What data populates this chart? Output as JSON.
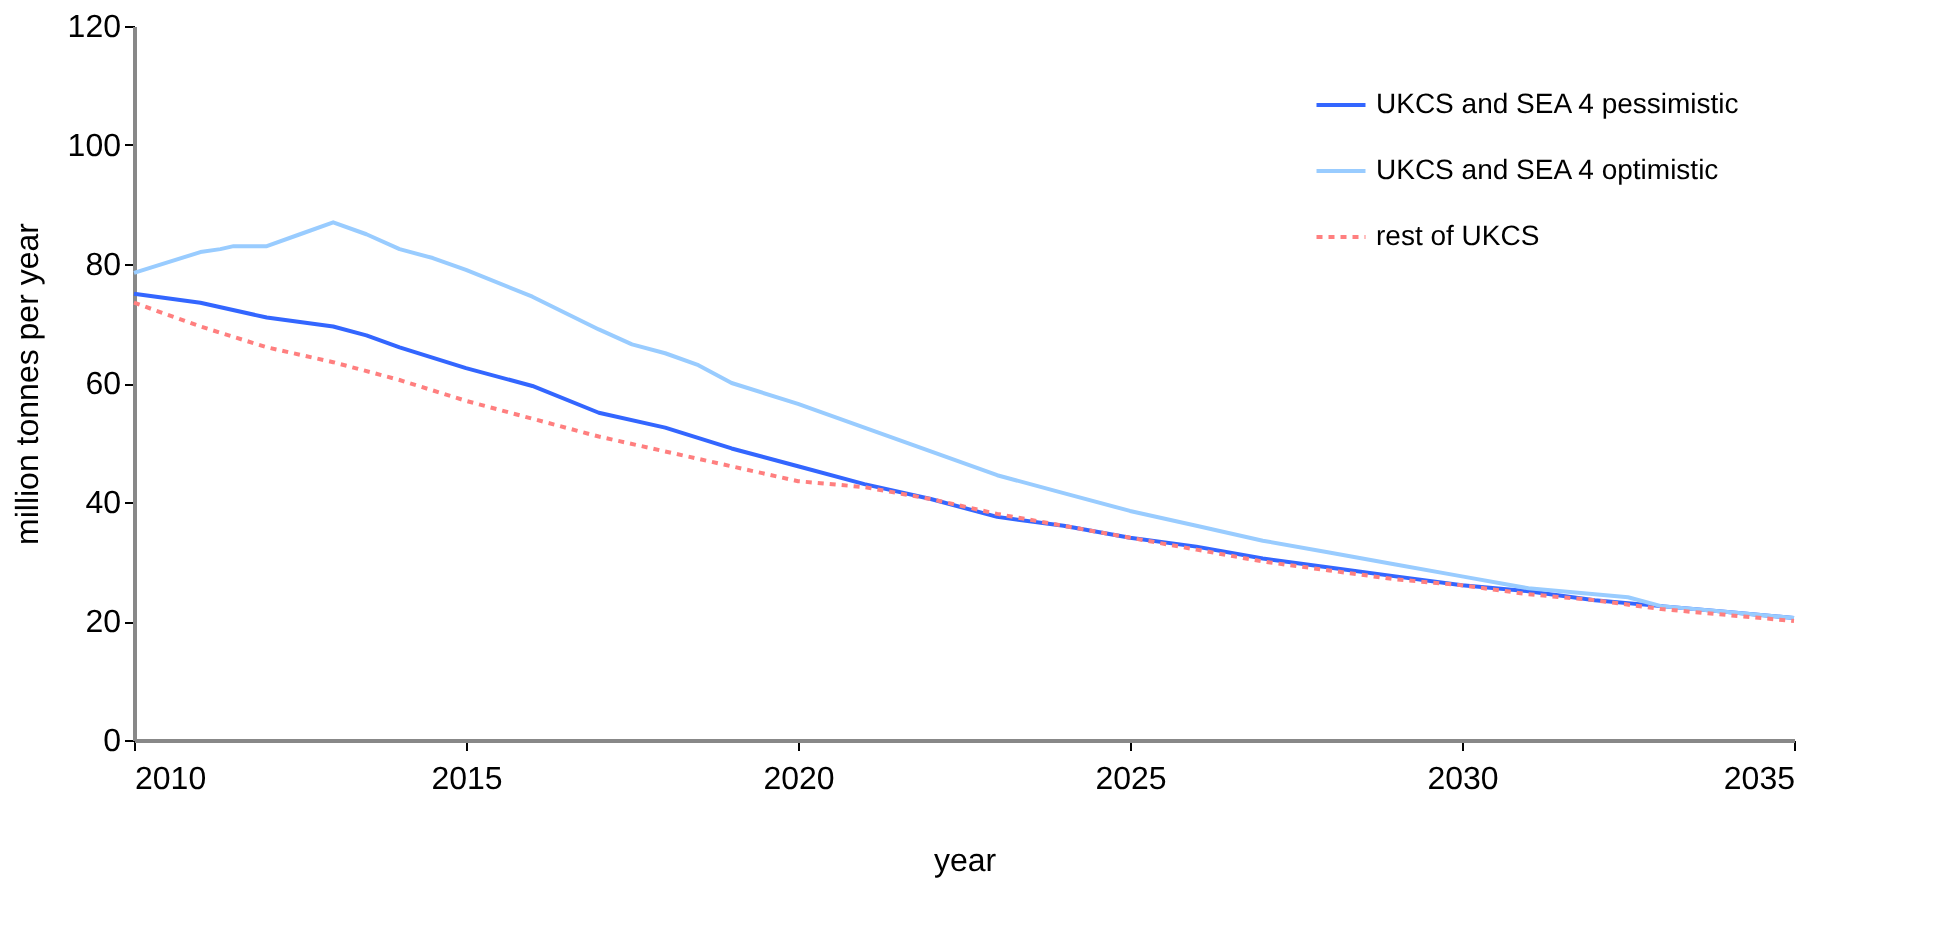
{
  "chart_data": {
    "type": "line",
    "xlabel": "year",
    "ylabel": "million tonnes per year",
    "xlim": [
      2010,
      2035
    ],
    "xticks": [
      2010,
      2015,
      2020,
      2025,
      2030,
      2035
    ],
    "ylim": [
      0,
      120
    ],
    "yticks": [
      0,
      20,
      40,
      60,
      80,
      100,
      120
    ],
    "grid": false,
    "legend": "top right",
    "series": [
      {
        "name": "UKCS and SEA 4 pessimistic",
        "color": "#3366ff",
        "line_style": "solid",
        "x": [
          2010,
          2011,
          2012,
          2013,
          2013.5,
          2014,
          2015,
          2016,
          2017,
          2018,
          2019,
          2020,
          2021,
          2022,
          2023,
          2024,
          2025,
          2026,
          2027,
          2028,
          2029,
          2030,
          2031,
          2032,
          2033,
          2034,
          2035
        ],
        "values": [
          75,
          73.5,
          71,
          69.5,
          68,
          66,
          62.5,
          59.5,
          55,
          52.5,
          49,
          46,
          43,
          40.5,
          37.5,
          36,
          34,
          32.5,
          30.5,
          29,
          27.5,
          26,
          25,
          23.5,
          22.5,
          21.5,
          20.5
        ]
      },
      {
        "name": "UKCS and SEA 4 optimistic",
        "color": "#99ccff",
        "line_style": "solid",
        "x": [
          2010,
          2011,
          2011.3,
          2011.5,
          2012,
          2012.5,
          2013,
          2013.5,
          2014,
          2014.5,
          2015,
          2016,
          2017,
          2017.5,
          2018,
          2018.5,
          2019,
          2020,
          2021,
          2022,
          2023,
          2024,
          2025,
          2026,
          2027,
          2028,
          2029,
          2030,
          2031,
          2032,
          2032.5,
          2033,
          2034,
          2035
        ],
        "values": [
          78.5,
          82,
          82.5,
          83,
          83,
          85,
          87,
          85,
          82.5,
          81,
          79,
          74.5,
          69,
          66.5,
          65,
          63,
          60,
          56.5,
          52.5,
          48.5,
          44.5,
          41.5,
          38.5,
          36,
          33.5,
          31.5,
          29.5,
          27.5,
          25.5,
          24.5,
          24,
          22.5,
          21.5,
          20.5
        ]
      },
      {
        "name": "rest of UKCS",
        "color": "#ff7f7f",
        "line_style": "dotted",
        "x": [
          2010,
          2011,
          2012,
          2013,
          2014,
          2015,
          2016,
          2017,
          2018,
          2019,
          2020,
          2021,
          2022,
          2023,
          2024,
          2025,
          2026,
          2027,
          2028,
          2029,
          2030,
          2031,
          2032,
          2033,
          2034,
          2035
        ],
        "values": [
          73.5,
          69.5,
          66,
          63.5,
          60.5,
          57,
          54,
          51,
          48.5,
          46,
          43.5,
          42.5,
          40.5,
          38,
          36,
          34,
          32,
          30,
          28.5,
          27,
          26,
          24.5,
          23.5,
          22,
          21,
          20
        ]
      }
    ]
  }
}
